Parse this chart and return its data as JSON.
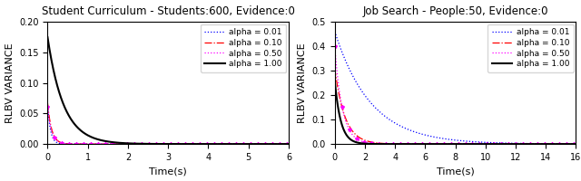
{
  "left_title": "Student Curriculum - Students:600, Evidence:0",
  "right_title": "Job Search - People:50, Evidence:0",
  "xlabel": "Time(s)",
  "ylabel": "RLBV VARIANCE",
  "left_xlim": [
    0,
    6
  ],
  "left_ylim": [
    0,
    0.2
  ],
  "right_xlim": [
    0,
    16
  ],
  "right_ylim": [
    0,
    0.5
  ],
  "left_yticks": [
    0.0,
    0.05,
    0.1,
    0.15,
    0.2
  ],
  "right_yticks": [
    0.0,
    0.1,
    0.2,
    0.3,
    0.4,
    0.5
  ],
  "configs_left": [
    {
      "color": "blue",
      "ls": "dotted",
      "marker": null,
      "lw": 0.9,
      "ms": 4,
      "a": 0.065,
      "k": 14.0,
      "label": "alpha = 0.01",
      "every": 1
    },
    {
      "color": "red",
      "ls": "dashdot",
      "marker": null,
      "lw": 0.9,
      "ms": 4,
      "a": 0.068,
      "k": 10.0,
      "label": "alpha = 0.10",
      "every": 1
    },
    {
      "color": "magenta",
      "ls": "dotted",
      "marker": "*",
      "lw": 0.9,
      "ms": 3,
      "a": 0.062,
      "k": 10.0,
      "label": "alpha = 0.50",
      "every": 15
    },
    {
      "color": "black",
      "ls": "solid",
      "marker": null,
      "lw": 1.5,
      "ms": 0,
      "a": 0.175,
      "k": 2.5,
      "label": "alpha = 1.00",
      "every": 1
    }
  ],
  "configs_right": [
    {
      "color": "blue",
      "ls": "dotted",
      "marker": null,
      "lw": 0.9,
      "ms": 4,
      "a": 0.46,
      "k": 0.42,
      "label": "alpha = 0.01",
      "every": 1
    },
    {
      "color": "red",
      "ls": "dashdot",
      "marker": null,
      "lw": 0.9,
      "ms": 4,
      "a": 0.31,
      "k": 1.5,
      "label": "alpha = 0.10",
      "every": 1
    },
    {
      "color": "magenta",
      "ls": "dotted",
      "marker": "*",
      "lw": 0.9,
      "ms": 3,
      "a": 0.4,
      "k": 2.0,
      "label": "alpha = 0.50",
      "every": 15
    },
    {
      "color": "black",
      "ls": "solid",
      "marker": null,
      "lw": 1.5,
      "ms": 0,
      "a": 0.26,
      "k": 2.5,
      "label": "alpha = 1.00",
      "every": 1
    }
  ],
  "n_points": 500,
  "figsize": [
    6.4,
    2.0
  ],
  "dpi": 100,
  "title_fontsize": 8.5,
  "label_fontsize": 8,
  "tick_fontsize": 7,
  "legend_fontsize": 6.5
}
